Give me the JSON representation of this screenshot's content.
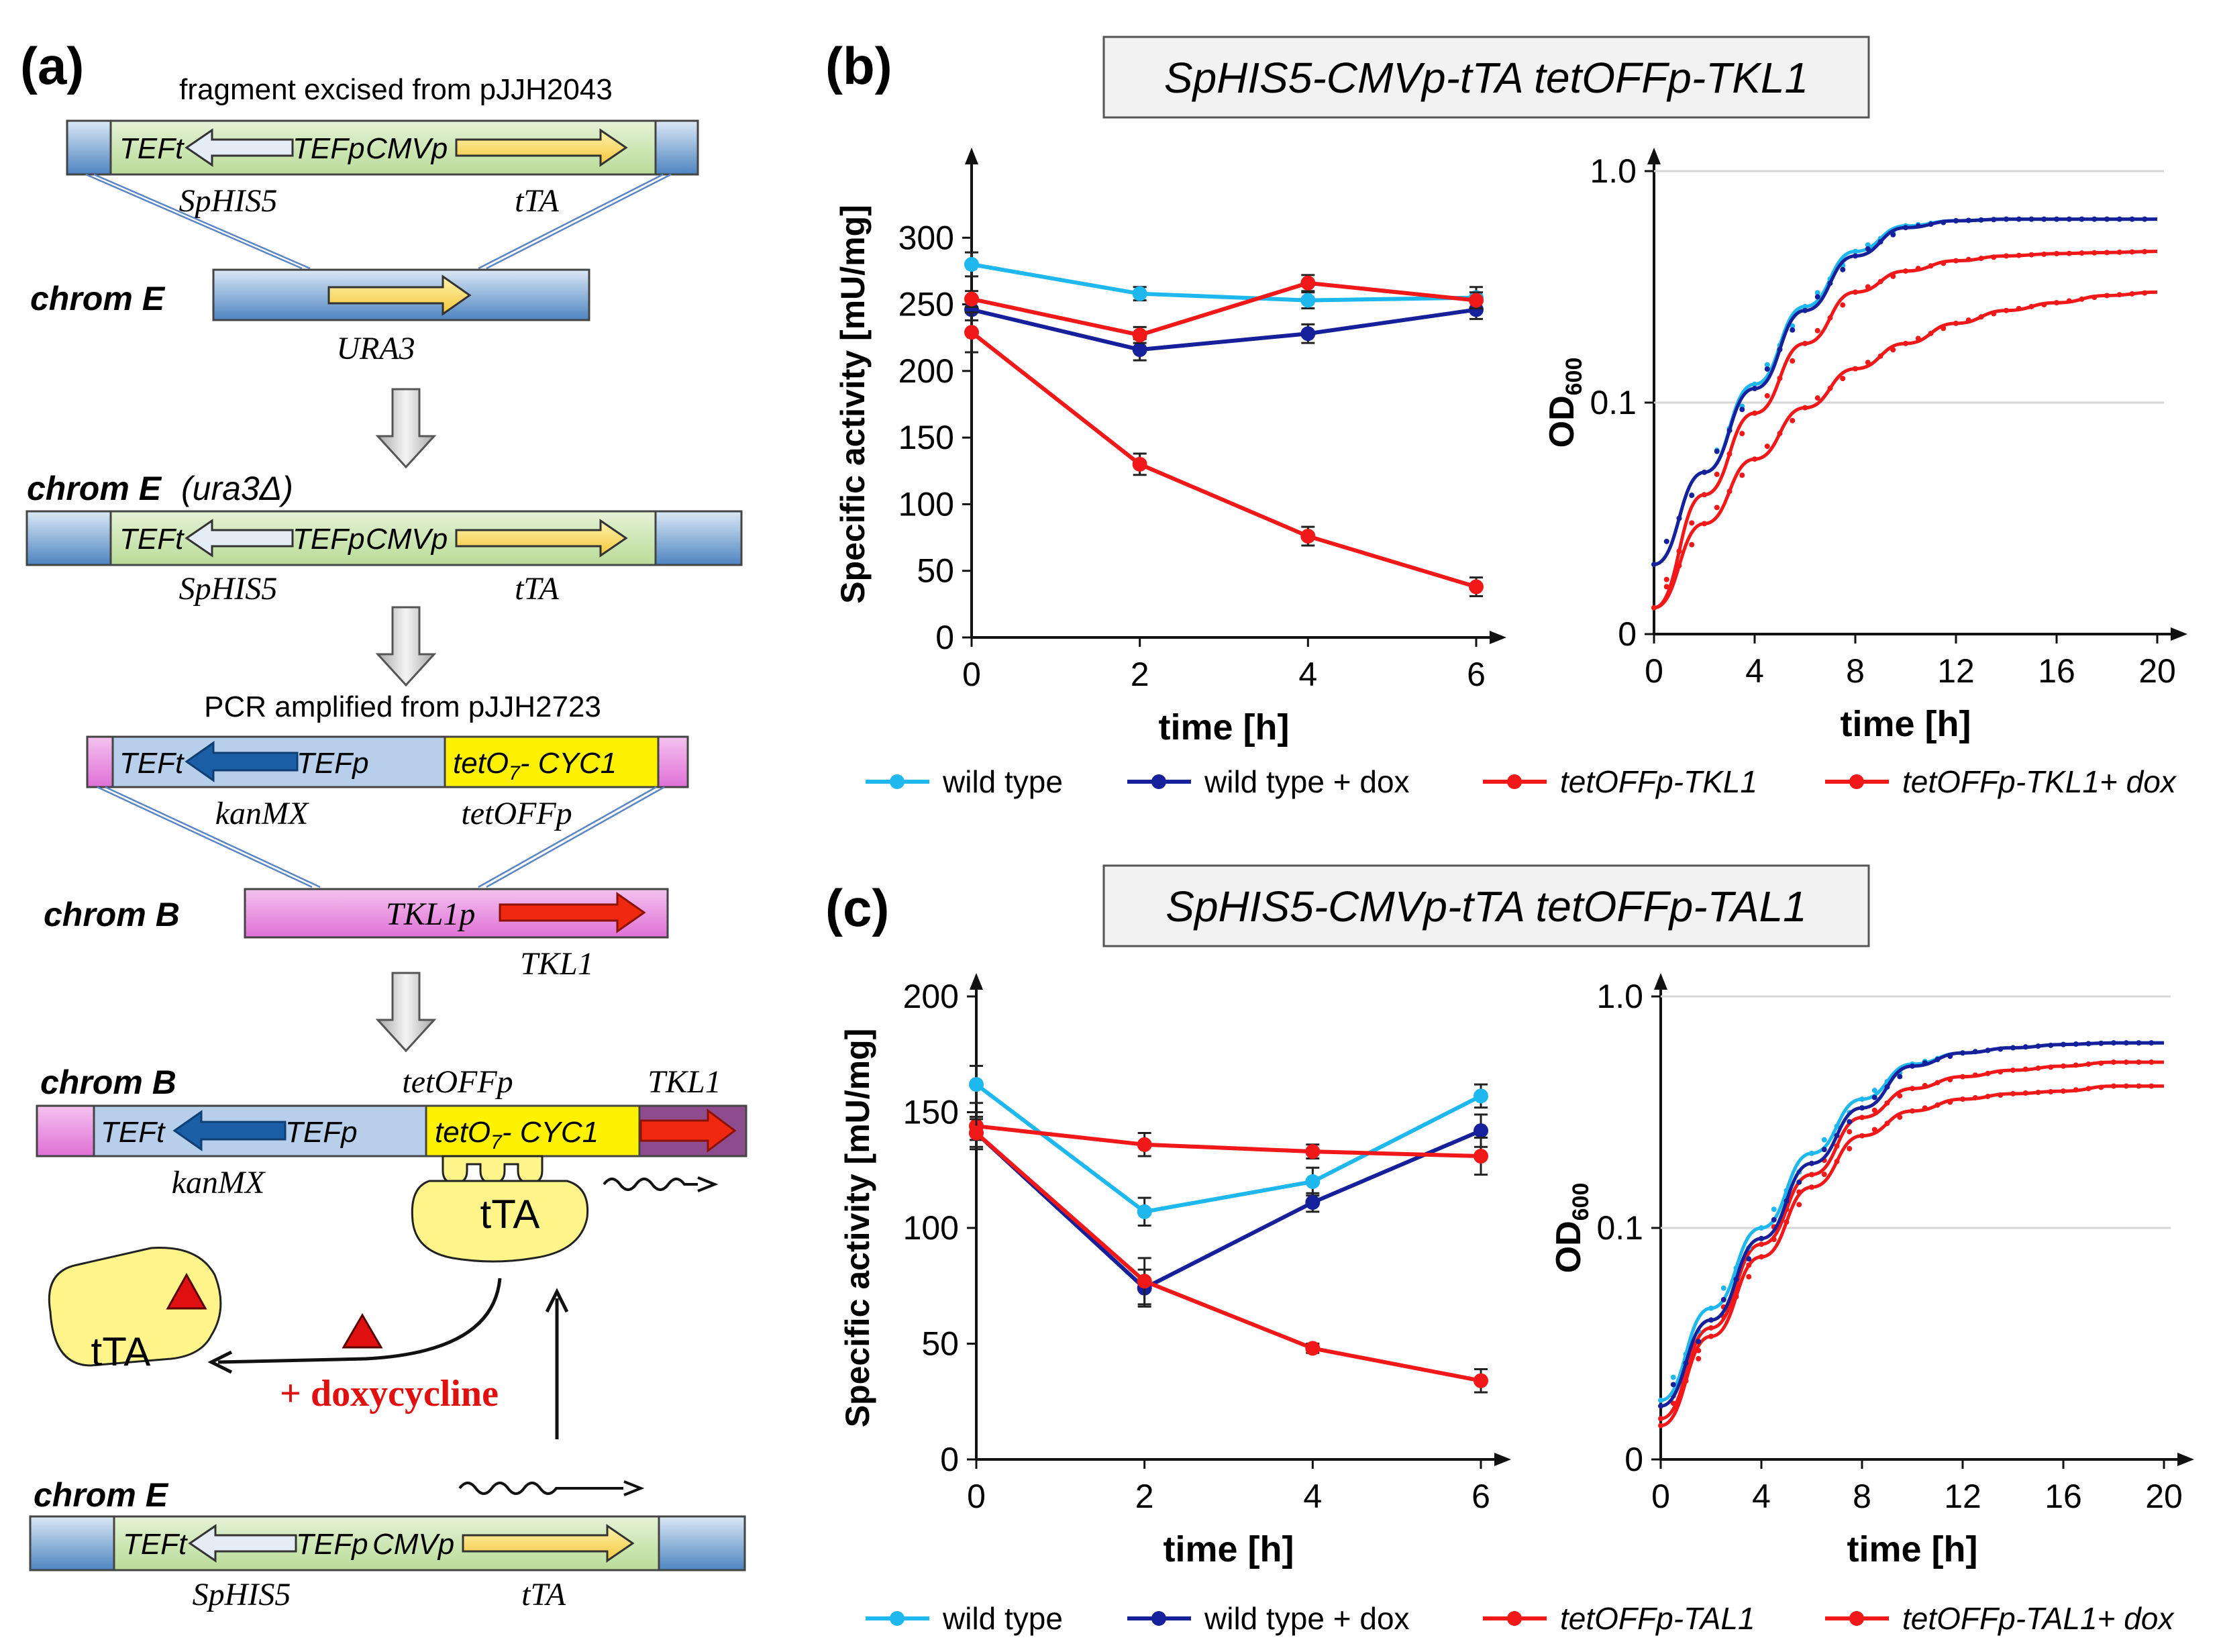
{
  "panel_a": {
    "label": "(a)",
    "caption_top": "fragment excised from pJJH2043",
    "caption_pcr": "PCR amplified from pJJH2723",
    "chrom_e": "chrom E",
    "chrom_e_ura": "chrom E",
    "ura_suffix": "(ura3Δ)",
    "chrom_b": "chrom B",
    "teft": "TEFt",
    "tefp": "TEFp",
    "cmvp": "CMVp",
    "sphis5": "SpHIS5",
    "tta_gene": "tTA",
    "ura3": "URA3",
    "kanmx": "kanMX",
    "tetoffp": "tetOFFp",
    "teto7": "tetO",
    "teto7_sub": "7",
    "cyc1": "- CYC1",
    "tkl1p": "TKL1p",
    "tkl1": "TKL1",
    "tta_protein": "tTA",
    "doxycycline": "+ doxycycline"
  },
  "panel_b": {
    "label": "(b)",
    "title": "SpHIS5-CMVp-tTA tetOFFp-TKL1"
  },
  "panel_c": {
    "label": "(c)",
    "title": "SpHIS5-CMVp-tTA tetOFFp-TAL1"
  },
  "colors": {
    "wt": "#1fb8ee",
    "wt_dox": "#16209a",
    "mut": "#f01818",
    "green_box": "#cfe6b4",
    "blue_box": "#b7cfea",
    "pink_box": "#e98be0",
    "yellow": "#fff200"
  },
  "chart_data": [
    {
      "id": "b-activity",
      "type": "line",
      "xlabel": "time [h]",
      "ylabel": "Specific activity [mU/mg]",
      "xlim": [
        0,
        6
      ],
      "ylim": [
        0,
        350
      ],
      "xticks": [
        "0",
        "2",
        "4",
        "6"
      ],
      "yticks": [
        "0",
        "50",
        "100",
        "150",
        "200",
        "250",
        "300"
      ],
      "x": [
        0,
        2,
        4,
        6
      ],
      "series": [
        {
          "name": "wild type",
          "values": [
            280,
            258,
            253,
            255
          ]
        },
        {
          "name": "wild type + dox",
          "values": [
            246,
            216,
            228,
            246
          ]
        },
        {
          "name": "tetOFFp-TKL1",
          "values": [
            254,
            227,
            266,
            253
          ]
        },
        {
          "name": "tetOFFp-TKL1+ dox",
          "values": [
            229,
            130,
            76,
            38
          ]
        }
      ],
      "errors": [
        [
          9,
          5,
          6,
          8
        ],
        [
          8,
          8,
          7,
          7
        ],
        [
          6,
          6,
          6,
          6
        ],
        [
          15,
          8,
          7,
          7
        ]
      ]
    },
    {
      "id": "b-od",
      "type": "line",
      "xlabel": "time [h]",
      "ylabel": "OD",
      "ylabel_sub": "600",
      "xlim": [
        0,
        20
      ],
      "yticks": [
        "0",
        "0.1",
        "1.0"
      ],
      "xticks": [
        "0",
        "4",
        "8",
        "12",
        "16",
        "20"
      ],
      "x": [
        0,
        2,
        4,
        6,
        8,
        10,
        12,
        14,
        16,
        18,
        20
      ],
      "series": [
        {
          "name": "wild type",
          "values": [
            0.02,
            0.05,
            0.12,
            0.26,
            0.45,
            0.58,
            0.61,
            0.62,
            0.62,
            0.62,
            0.62
          ]
        },
        {
          "name": "wild type + dox",
          "values": [
            0.02,
            0.05,
            0.115,
            0.25,
            0.43,
            0.57,
            0.61,
            0.62,
            0.62,
            0.62,
            0.62
          ]
        },
        {
          "name": "tetOFFp-TKL1",
          "values": [
            0.013,
            0.04,
            0.09,
            0.18,
            0.3,
            0.37,
            0.41,
            0.43,
            0.44,
            0.445,
            0.45
          ]
        },
        {
          "name": "tetOFFp-TKL1+ dox",
          "values": [
            0.013,
            0.03,
            0.057,
            0.095,
            0.14,
            0.18,
            0.22,
            0.25,
            0.27,
            0.29,
            0.3
          ]
        }
      ]
    },
    {
      "id": "c-activity",
      "type": "line",
      "xlabel": "time [h]",
      "ylabel": "Specific activity [mU/mg]",
      "xlim": [
        0,
        6
      ],
      "ylim": [
        0,
        200
      ],
      "xticks": [
        "0",
        "2",
        "4",
        "6"
      ],
      "yticks": [
        "0",
        "50",
        "100",
        "150",
        "200"
      ],
      "x": [
        0,
        2,
        4,
        6
      ],
      "series": [
        {
          "name": "wild type",
          "values": [
            162,
            107,
            120,
            157
          ]
        },
        {
          "name": "wild type + dox",
          "values": [
            141,
            74,
            111,
            142
          ]
        },
        {
          "name": "tetOFFp-TAL1",
          "values": [
            144,
            136,
            133,
            131
          ]
        },
        {
          "name": "tetOFFp-TAL1+ dox",
          "values": [
            141,
            77,
            48,
            34
          ]
        }
      ],
      "errors": [
        [
          8,
          6,
          6,
          5
        ],
        [
          7,
          8,
          4,
          7
        ],
        [
          6,
          5,
          3,
          8
        ],
        [
          6,
          10,
          2,
          5
        ]
      ]
    },
    {
      "id": "c-od",
      "type": "line",
      "xlabel": "time [h]",
      "ylabel": "OD",
      "ylabel_sub": "600",
      "xlim": [
        0,
        20
      ],
      "yticks": [
        "0",
        "0.1",
        "1.0"
      ],
      "xticks": [
        "0",
        "4",
        "8",
        "12",
        "16",
        "20"
      ],
      "x": [
        0,
        2,
        4,
        6,
        8,
        10,
        12,
        14,
        16,
        18,
        20
      ],
      "series": [
        {
          "name": "wild type",
          "values": [
            0.018,
            0.045,
            0.1,
            0.21,
            0.36,
            0.51,
            0.57,
            0.6,
            0.62,
            0.63,
            0.63
          ]
        },
        {
          "name": "wild type + dox",
          "values": [
            0.017,
            0.04,
            0.09,
            0.19,
            0.33,
            0.5,
            0.57,
            0.6,
            0.62,
            0.63,
            0.63
          ]
        },
        {
          "name": "tetOFFp-TAL1",
          "values": [
            0.015,
            0.037,
            0.085,
            0.17,
            0.3,
            0.4,
            0.45,
            0.48,
            0.5,
            0.52,
            0.52
          ]
        },
        {
          "name": "tetOFFp-TAL1+ dox",
          "values": [
            0.014,
            0.034,
            0.075,
            0.15,
            0.25,
            0.32,
            0.36,
            0.38,
            0.39,
            0.41,
            0.41
          ]
        }
      ]
    }
  ],
  "legend_b": [
    "wild type",
    "wild type + dox",
    "tetOFFp-TKL1",
    "tetOFFp-TKL1+ dox"
  ],
  "legend_c": [
    "wild type",
    "wild type + dox",
    "tetOFFp-TAL1",
    "tetOFFp-TAL1+ dox"
  ]
}
